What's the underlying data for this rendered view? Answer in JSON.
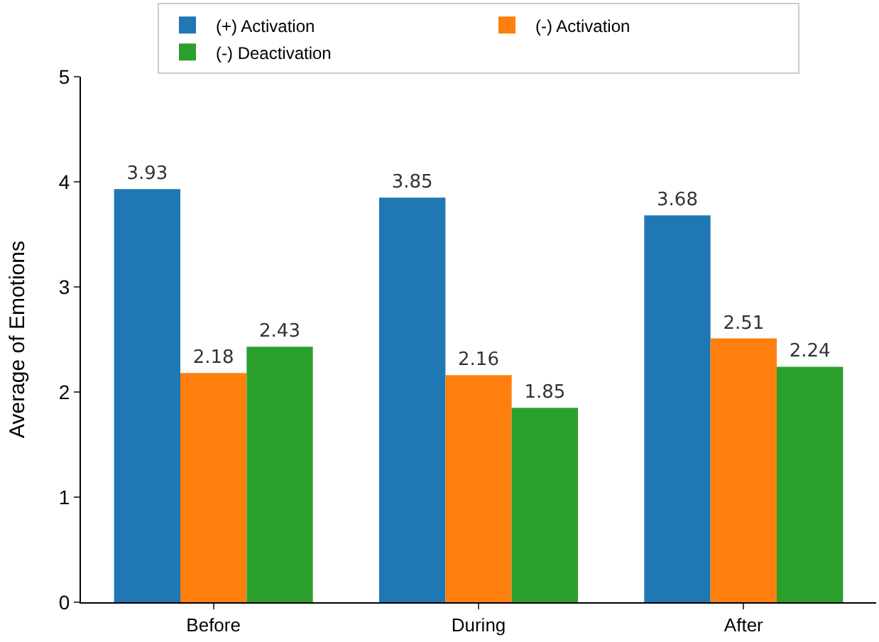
{
  "chart_data": {
    "type": "bar",
    "ylabel": "Average of Emotions",
    "categories": [
      "Before",
      "During",
      "After"
    ],
    "series": [
      {
        "name": "(+) Activation",
        "color": "#1f77b4",
        "values": [
          3.93,
          3.85,
          3.68
        ]
      },
      {
        "name": "(-) Activation",
        "color": "#ff7f0e",
        "values": [
          2.18,
          2.16,
          2.51
        ]
      },
      {
        "name": "(-) Deactivation",
        "color": "#2ca02c",
        "values": [
          2.43,
          1.85,
          2.24
        ]
      }
    ],
    "ylim": [
      0,
      5
    ],
    "yticks": [
      0,
      1,
      2,
      3,
      4,
      5
    ],
    "data_labels": true,
    "legend": "top",
    "grid": false
  }
}
